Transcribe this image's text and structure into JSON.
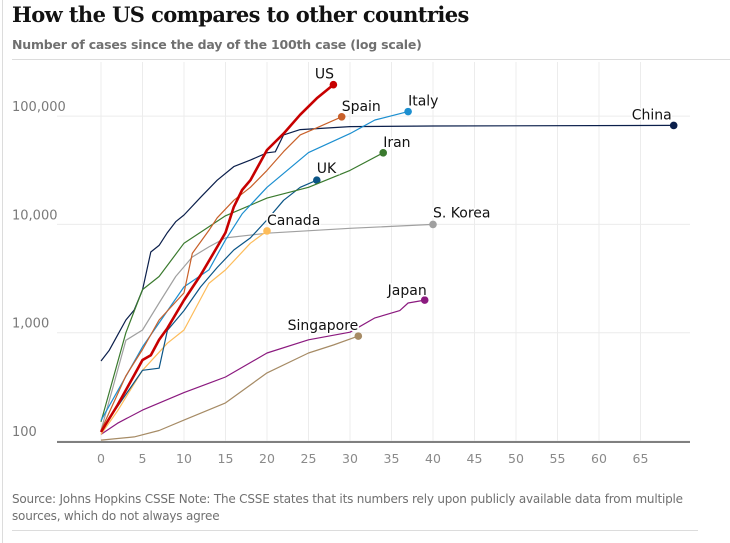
{
  "title": "How the US compares to other countries",
  "subtitle": "Number of cases since the day of the 100th case (log scale)",
  "footer": "Source: Johns Hopkins CSSE Note: The CSSE states that its numbers rely upon publicly available data from multiple sources, which do not always agree",
  "chart_data": {
    "type": "line",
    "title": "How the US compares to other countries",
    "subtitle": "Number of cases since the day of the 100th case (log scale)",
    "xlabel": "",
    "ylabel": "",
    "y_scale": "log",
    "xlim": [
      0,
      69
    ],
    "ylim": [
      100,
      200000
    ],
    "x_ticks": [
      0,
      5,
      10,
      15,
      20,
      25,
      30,
      35,
      40,
      45,
      50,
      55,
      60,
      65
    ],
    "y_ticks": [
      100,
      1000,
      10000,
      100000
    ],
    "y_tick_labels": [
      "100",
      "1,000",
      "10,000",
      "100,000"
    ],
    "grid": true,
    "legend": "direct labels at line ends",
    "series": [
      {
        "name": "China",
        "color": "#0b1f4b",
        "x": [
          0,
          1,
          2,
          3,
          4,
          5,
          6,
          7,
          8,
          9,
          10,
          12,
          14,
          16,
          18,
          20,
          21,
          22,
          24,
          30,
          40,
          69
        ],
        "y": [
          548,
          690,
          950,
          1310,
          1620,
          2480,
          5560,
          6400,
          8400,
          10600,
          12200,
          17800,
          25600,
          34200,
          39200,
          45800,
          46800,
          67000,
          75000,
          80000,
          81000,
          82000
        ]
      },
      {
        "name": "Singapore",
        "color": "#a68b65",
        "x": [
          0,
          4,
          7,
          10,
          15,
          20,
          25,
          28,
          31
        ],
        "y": [
          102,
          109,
          125,
          156,
          225,
          425,
          650,
          770,
          930
        ]
      },
      {
        "name": "Japan",
        "color": "#8b1a7f",
        "x": [
          0,
          2,
          5,
          10,
          15,
          20,
          25,
          30,
          33,
          36,
          37,
          39
        ],
        "y": [
          115,
          146,
          193,
          280,
          390,
          650,
          860,
          1010,
          1370,
          1600,
          1880,
          2000
        ]
      },
      {
        "name": "S. Korea",
        "color": "#a0a0a0",
        "x": [
          0,
          3,
          5,
          7,
          9,
          11,
          13,
          15,
          20,
          30,
          40
        ],
        "y": [
          125,
          850,
          1060,
          1880,
          3300,
          5000,
          6200,
          7500,
          8300,
          9200,
          10000
        ]
      },
      {
        "name": "Canada",
        "color": "#fdbc5a",
        "x": [
          0,
          2,
          5,
          8,
          10,
          13,
          15,
          18,
          20
        ],
        "y": [
          115,
          190,
          450,
          800,
          1060,
          2850,
          3800,
          6700,
          8700
        ]
      },
      {
        "name": "UK",
        "color": "#0b5586",
        "x": [
          0,
          5,
          7,
          8,
          10,
          12,
          14,
          16,
          18,
          20,
          22,
          24,
          26
        ],
        "y": [
          125,
          450,
          470,
          1050,
          1600,
          2650,
          4000,
          5800,
          7500,
          11000,
          16700,
          22000,
          25600
        ]
      },
      {
        "name": "Iran",
        "color": "#3a7a2e",
        "x": [
          0,
          3,
          5,
          7,
          10,
          13,
          15,
          20,
          25,
          30,
          34
        ],
        "y": [
          150,
          1000,
          2500,
          3300,
          6700,
          9500,
          12000,
          17500,
          22000,
          31500,
          45800
        ]
      },
      {
        "name": "Italy",
        "color": "#1c8fd0",
        "x": [
          0,
          5,
          10,
          13,
          15,
          17,
          20,
          25,
          30,
          33,
          37
        ],
        "y": [
          155,
          740,
          2650,
          3800,
          7200,
          12500,
          22000,
          46000,
          69000,
          92000,
          110000
        ]
      },
      {
        "name": "Spain",
        "color": "#c8602a",
        "x": [
          0,
          3,
          5,
          7,
          10,
          11,
          13,
          14,
          16,
          18,
          20,
          22,
          24,
          26,
          29
        ],
        "y": [
          125,
          400,
          700,
          1310,
          2330,
          5400,
          8800,
          11500,
          16700,
          22000,
          31500,
          47000,
          67000,
          78000,
          98600
        ]
      },
      {
        "name": "US",
        "color": "#c70000",
        "x": [
          0,
          2,
          4,
          5,
          6,
          7,
          8,
          10,
          12,
          14,
          15,
          16,
          17,
          18,
          20,
          22,
          24,
          26,
          28
        ],
        "y": [
          121,
          215,
          406,
          560,
          620,
          860,
          1100,
          2000,
          3400,
          6200,
          8400,
          14500,
          20800,
          25600,
          48600,
          69000,
          103000,
          146000,
          195000
        ]
      }
    ]
  }
}
